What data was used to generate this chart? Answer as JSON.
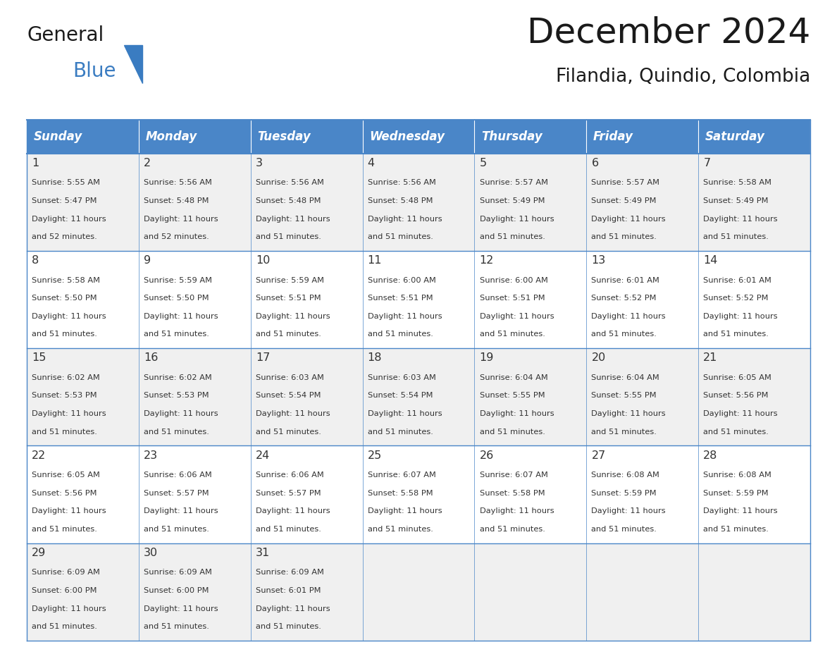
{
  "title": "December 2024",
  "subtitle": "Filandia, Quindio, Colombia",
  "days_of_week": [
    "Sunday",
    "Monday",
    "Tuesday",
    "Wednesday",
    "Thursday",
    "Friday",
    "Saturday"
  ],
  "header_bg": "#4a86c8",
  "header_text": "#ffffff",
  "cell_bg_odd": "#f0f0f0",
  "cell_bg_even": "#ffffff",
  "cell_border": "#4a86c8",
  "day_number_color": "#333333",
  "cell_text_color": "#333333",
  "calendar_data": [
    [
      {
        "day": 1,
        "sunrise": "5:55 AM",
        "sunset": "5:47 PM",
        "daylight_min": "52"
      },
      {
        "day": 2,
        "sunrise": "5:56 AM",
        "sunset": "5:48 PM",
        "daylight_min": "52"
      },
      {
        "day": 3,
        "sunrise": "5:56 AM",
        "sunset": "5:48 PM",
        "daylight_min": "51"
      },
      {
        "day": 4,
        "sunrise": "5:56 AM",
        "sunset": "5:48 PM",
        "daylight_min": "51"
      },
      {
        "day": 5,
        "sunrise": "5:57 AM",
        "sunset": "5:49 PM",
        "daylight_min": "51"
      },
      {
        "day": 6,
        "sunrise": "5:57 AM",
        "sunset": "5:49 PM",
        "daylight_min": "51"
      },
      {
        "day": 7,
        "sunrise": "5:58 AM",
        "sunset": "5:49 PM",
        "daylight_min": "51"
      }
    ],
    [
      {
        "day": 8,
        "sunrise": "5:58 AM",
        "sunset": "5:50 PM",
        "daylight_min": "51"
      },
      {
        "day": 9,
        "sunrise": "5:59 AM",
        "sunset": "5:50 PM",
        "daylight_min": "51"
      },
      {
        "day": 10,
        "sunrise": "5:59 AM",
        "sunset": "5:51 PM",
        "daylight_min": "51"
      },
      {
        "day": 11,
        "sunrise": "6:00 AM",
        "sunset": "5:51 PM",
        "daylight_min": "51"
      },
      {
        "day": 12,
        "sunrise": "6:00 AM",
        "sunset": "5:51 PM",
        "daylight_min": "51"
      },
      {
        "day": 13,
        "sunrise": "6:01 AM",
        "sunset": "5:52 PM",
        "daylight_min": "51"
      },
      {
        "day": 14,
        "sunrise": "6:01 AM",
        "sunset": "5:52 PM",
        "daylight_min": "51"
      }
    ],
    [
      {
        "day": 15,
        "sunrise": "6:02 AM",
        "sunset": "5:53 PM",
        "daylight_min": "51"
      },
      {
        "day": 16,
        "sunrise": "6:02 AM",
        "sunset": "5:53 PM",
        "daylight_min": "51"
      },
      {
        "day": 17,
        "sunrise": "6:03 AM",
        "sunset": "5:54 PM",
        "daylight_min": "51"
      },
      {
        "day": 18,
        "sunrise": "6:03 AM",
        "sunset": "5:54 PM",
        "daylight_min": "51"
      },
      {
        "day": 19,
        "sunrise": "6:04 AM",
        "sunset": "5:55 PM",
        "daylight_min": "51"
      },
      {
        "day": 20,
        "sunrise": "6:04 AM",
        "sunset": "5:55 PM",
        "daylight_min": "51"
      },
      {
        "day": 21,
        "sunrise": "6:05 AM",
        "sunset": "5:56 PM",
        "daylight_min": "51"
      }
    ],
    [
      {
        "day": 22,
        "sunrise": "6:05 AM",
        "sunset": "5:56 PM",
        "daylight_min": "51"
      },
      {
        "day": 23,
        "sunrise": "6:06 AM",
        "sunset": "5:57 PM",
        "daylight_min": "51"
      },
      {
        "day": 24,
        "sunrise": "6:06 AM",
        "sunset": "5:57 PM",
        "daylight_min": "51"
      },
      {
        "day": 25,
        "sunrise": "6:07 AM",
        "sunset": "5:58 PM",
        "daylight_min": "51"
      },
      {
        "day": 26,
        "sunrise": "6:07 AM",
        "sunset": "5:58 PM",
        "daylight_min": "51"
      },
      {
        "day": 27,
        "sunrise": "6:08 AM",
        "sunset": "5:59 PM",
        "daylight_min": "51"
      },
      {
        "day": 28,
        "sunrise": "6:08 AM",
        "sunset": "5:59 PM",
        "daylight_min": "51"
      }
    ],
    [
      {
        "day": 29,
        "sunrise": "6:09 AM",
        "sunset": "6:00 PM",
        "daylight_min": "51"
      },
      {
        "day": 30,
        "sunrise": "6:09 AM",
        "sunset": "6:00 PM",
        "daylight_min": "51"
      },
      {
        "day": 31,
        "sunrise": "6:09 AM",
        "sunset": "6:01 PM",
        "daylight_min": "51"
      },
      null,
      null,
      null,
      null
    ]
  ],
  "logo_color_general": "#1a1a1a",
  "logo_color_blue": "#3a7cc1",
  "logo_triangle_color": "#3a7cc1",
  "title_color": "#1a1a1a",
  "subtitle_color": "#1a1a1a"
}
